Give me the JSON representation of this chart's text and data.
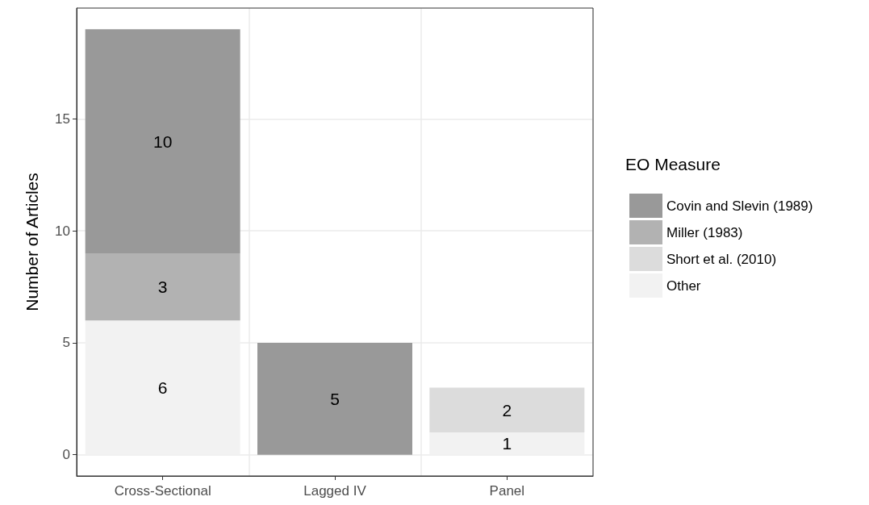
{
  "chart_data": {
    "type": "bar",
    "stacked": true,
    "ylabel": "Number of Articles",
    "legend_title": "EO Measure",
    "legend": "right",
    "grid": true,
    "data_labels": true,
    "categories": [
      "Cross-Sectional",
      "Lagged IV",
      "Panel"
    ],
    "ylim": [
      -0.95,
      19.95
    ],
    "yticks": [
      0,
      5,
      10,
      15
    ],
    "series": [
      {
        "name": "Other",
        "color": "#f2f2f2",
        "values": [
          6,
          null,
          1
        ]
      },
      {
        "name": "Short et al. (2010)",
        "color": "#dcdcdc",
        "values": [
          null,
          null,
          2
        ]
      },
      {
        "name": "Miller (1983)",
        "color": "#b2b2b2",
        "values": [
          3,
          null,
          null
        ]
      },
      {
        "name": "Covin and Slevin (1989)",
        "color": "#999999",
        "values": [
          10,
          5,
          null
        ]
      }
    ]
  }
}
